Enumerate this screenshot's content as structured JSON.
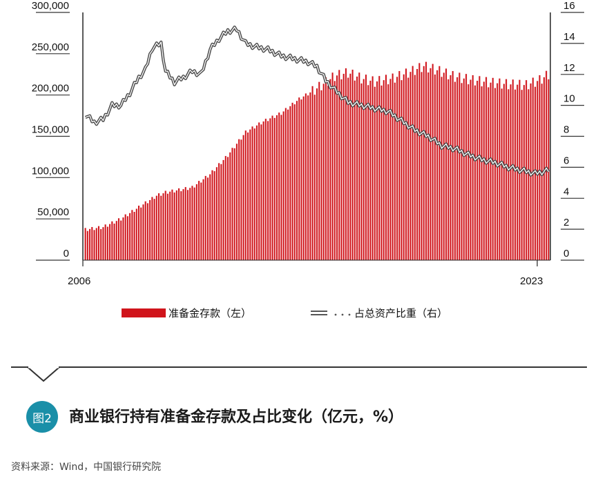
{
  "chart_data": {
    "type": "bar+line",
    "x_start_label": "2006",
    "x_end_label": "2023",
    "left_axis": {
      "ticks": [
        "0",
        "50,000",
        "100,000",
        "150,000",
        "200,000",
        "250,000",
        "300,000"
      ],
      "ylim": [
        0,
        300000
      ]
    },
    "right_axis": {
      "ticks": [
        "0",
        "2",
        "4",
        "6",
        "8",
        "10",
        "12",
        "14",
        "16"
      ],
      "ylim": [
        0,
        16
      ]
    },
    "legend": {
      "position": "bottom"
    },
    "colors": {
      "bars": "#d0141b",
      "line": "#555555"
    },
    "series": [
      {
        "name": "准备金存款（左）",
        "type": "bar",
        "axis": "left",
        "keyframes": [
          [
            0,
            37000
          ],
          [
            8,
            40000
          ],
          [
            16,
            50000
          ],
          [
            24,
            64000
          ],
          [
            32,
            78000
          ],
          [
            36,
            82000
          ],
          [
            42,
            85000
          ],
          [
            48,
            88000
          ],
          [
            56,
            104000
          ],
          [
            64,
            127000
          ],
          [
            72,
            155000
          ],
          [
            80,
            168000
          ],
          [
            88,
            178000
          ],
          [
            96,
            195000
          ],
          [
            104,
            208000
          ],
          [
            112,
            223000
          ],
          [
            118,
            227000
          ],
          [
            124,
            220000
          ],
          [
            130,
            216000
          ],
          [
            138,
            220000
          ],
          [
            146,
            228000
          ],
          [
            152,
            235000
          ],
          [
            158,
            230000
          ],
          [
            166,
            222000
          ],
          [
            174,
            218000
          ],
          [
            182,
            215000
          ],
          [
            190,
            213000
          ],
          [
            198,
            212000
          ],
          [
            204,
            218000
          ],
          [
            208,
            225000
          ]
        ]
      },
      {
        "name": "占总资产比重（右）",
        "type": "line",
        "axis": "right",
        "keyframes": [
          [
            0,
            9.4
          ],
          [
            4,
            8.9
          ],
          [
            8,
            9.1
          ],
          [
            12,
            10.0
          ],
          [
            16,
            10.0
          ],
          [
            20,
            10.8
          ],
          [
            24,
            11.8
          ],
          [
            27,
            12.3
          ],
          [
            30,
            13.7
          ],
          [
            34,
            14.0
          ],
          [
            36,
            12.2
          ],
          [
            40,
            11.5
          ],
          [
            44,
            11.8
          ],
          [
            48,
            12.2
          ],
          [
            52,
            12.0
          ],
          [
            56,
            13.6
          ],
          [
            60,
            14.3
          ],
          [
            64,
            14.8
          ],
          [
            68,
            14.9
          ],
          [
            72,
            14.0
          ],
          [
            76,
            13.8
          ],
          [
            82,
            13.6
          ],
          [
            88,
            13.2
          ],
          [
            94,
            13.0
          ],
          [
            100,
            12.8
          ],
          [
            104,
            12.5
          ],
          [
            108,
            11.6
          ],
          [
            112,
            11.0
          ],
          [
            118,
            10.2
          ],
          [
            124,
            10.0
          ],
          [
            130,
            9.8
          ],
          [
            136,
            9.6
          ],
          [
            142,
            9.0
          ],
          [
            148,
            8.4
          ],
          [
            154,
            8.0
          ],
          [
            160,
            7.4
          ],
          [
            166,
            7.2
          ],
          [
            172,
            6.8
          ],
          [
            178,
            6.5
          ],
          [
            184,
            6.3
          ],
          [
            190,
            6.0
          ],
          [
            196,
            5.8
          ],
          [
            202,
            5.6
          ],
          [
            208,
            5.8
          ]
        ]
      }
    ],
    "n_periods": 209
  },
  "legend_labels": {
    "bars": "准备金存款（左）",
    "line": "占总资产比重（右）"
  },
  "figure": {
    "badge": "图2",
    "title": "商业银行持有准备金存款及占比变化（亿元，%）"
  },
  "source": "资料来源：Wind，中国银行研究院"
}
